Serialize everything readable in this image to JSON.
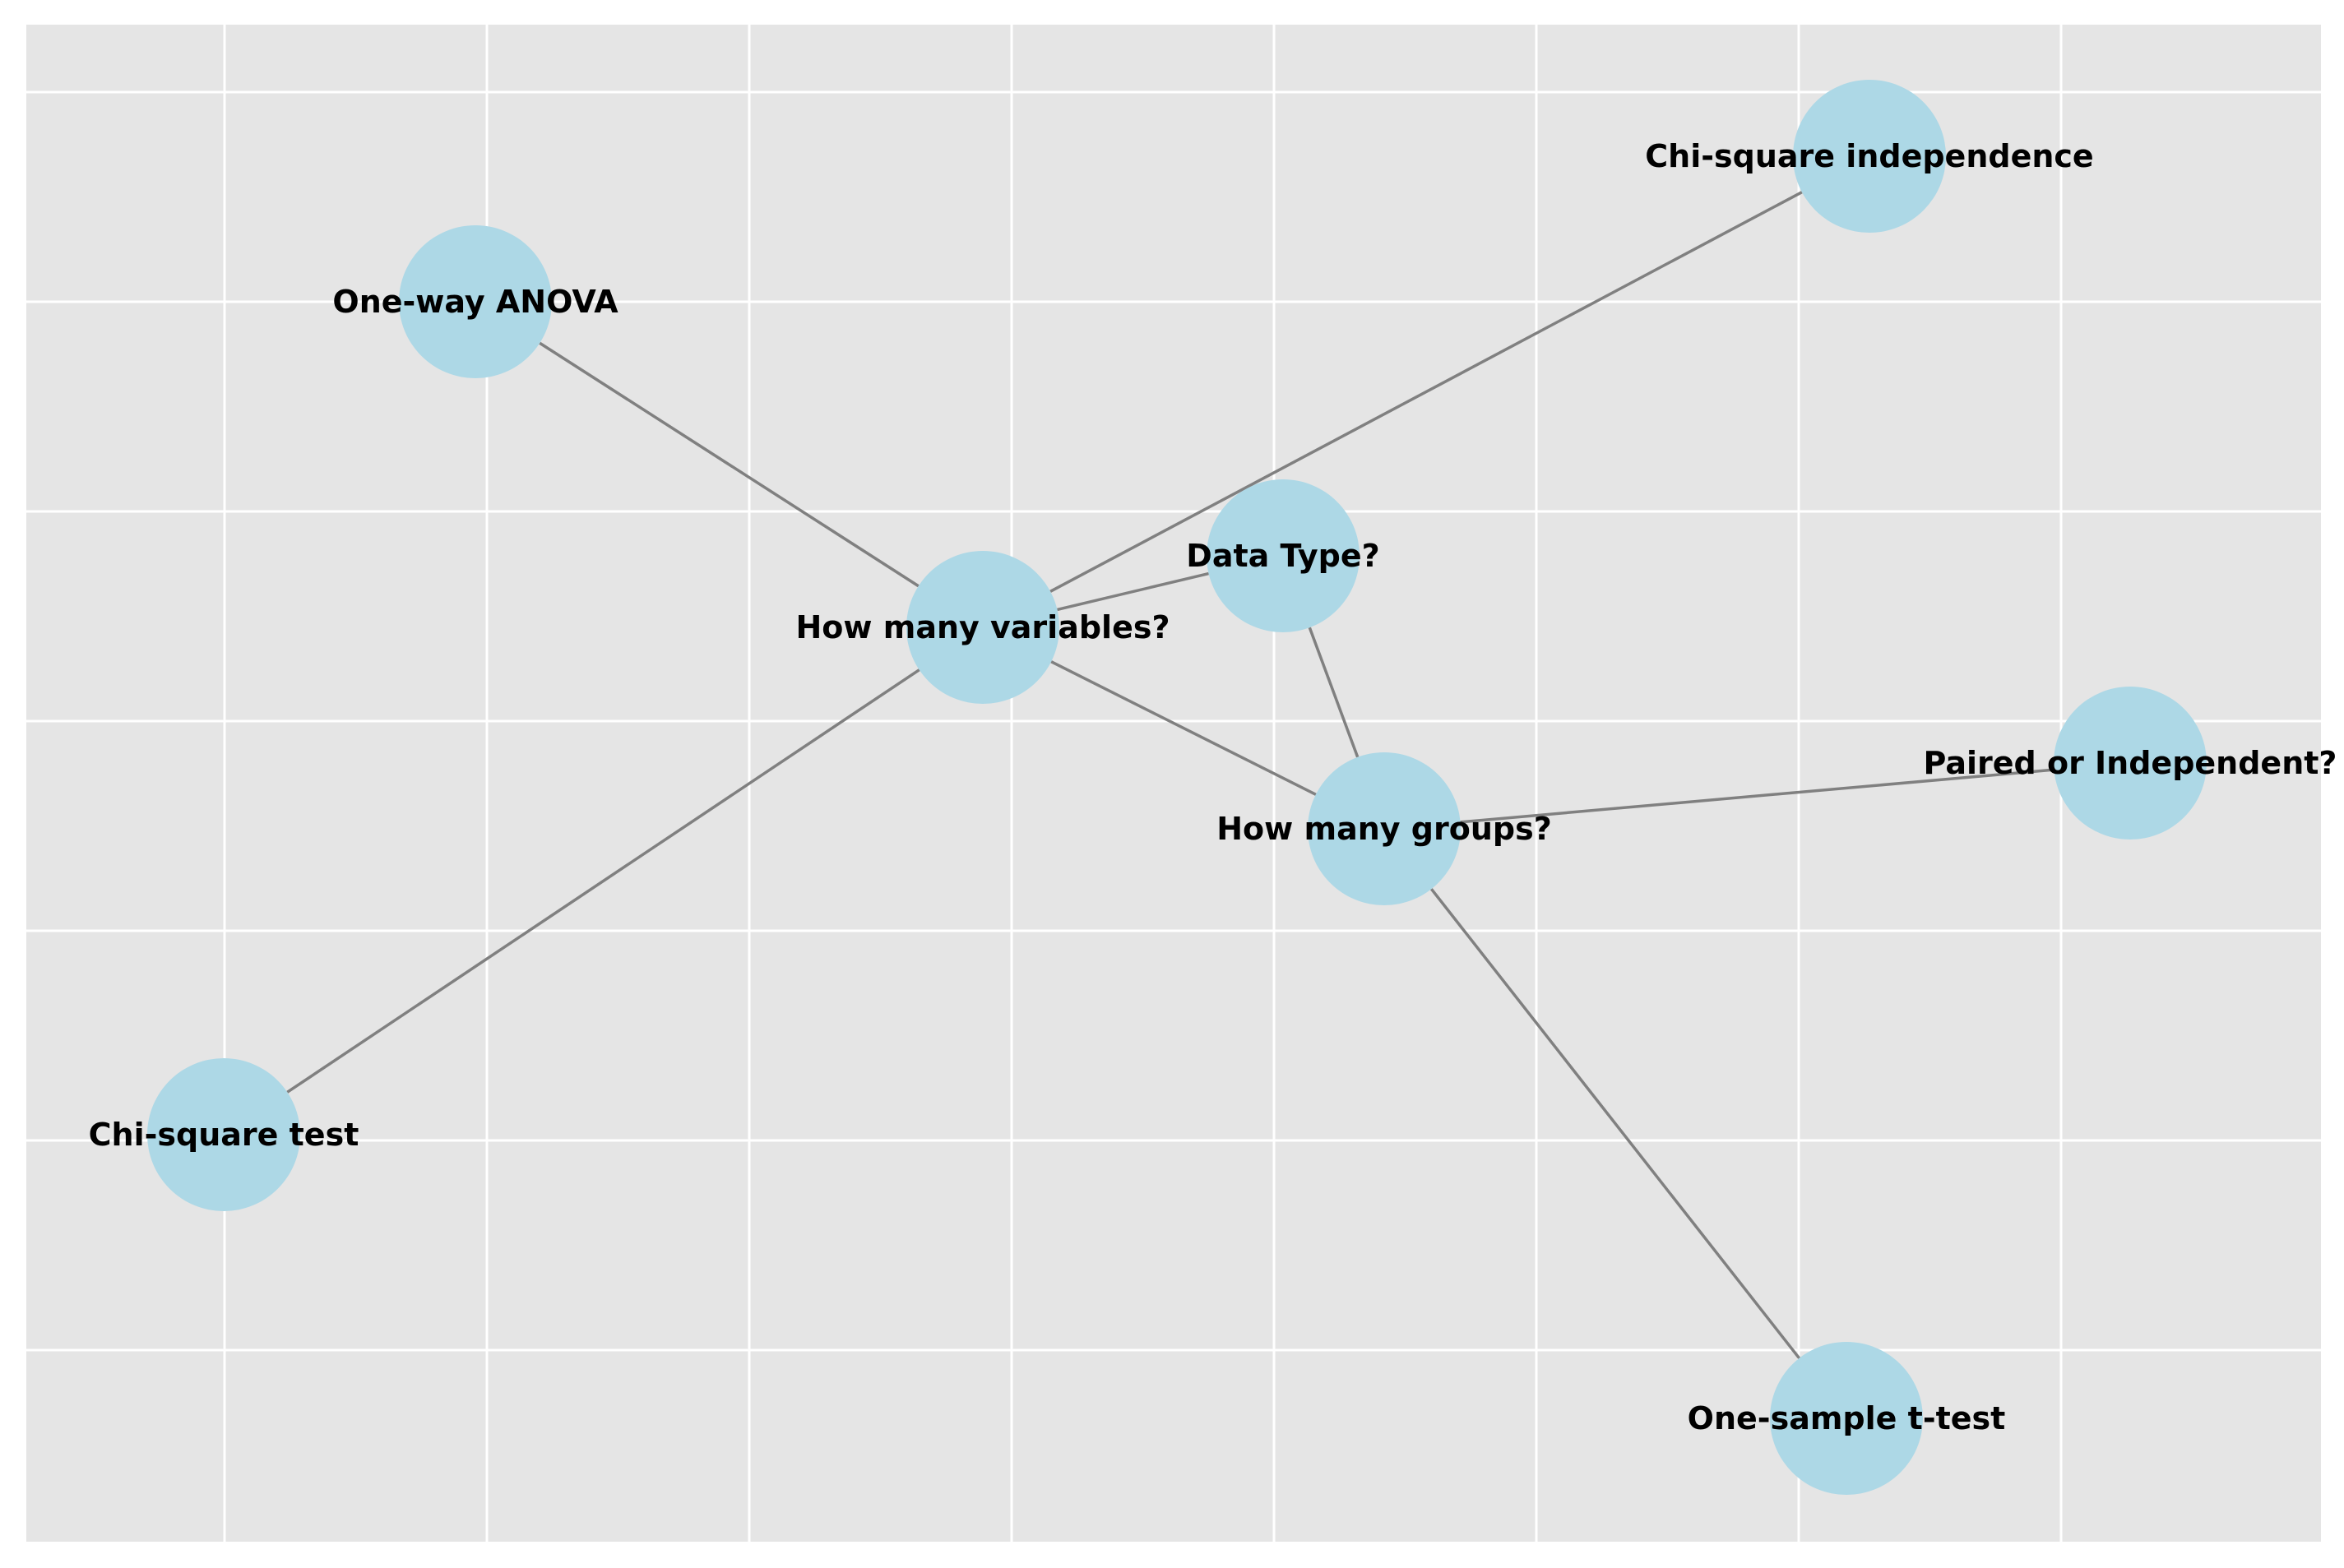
{
  "colors": {
    "plot_background": "#e5e5e5",
    "grid": "#ffffff",
    "edge": "#808080",
    "node_fill": "#add8e6",
    "label": "#000000"
  },
  "nodes": [
    {
      "id": "data-type",
      "label": "Data Type?"
    },
    {
      "id": "how-many-variables",
      "label": "How many variables?"
    },
    {
      "id": "how-many-groups",
      "label": "How many groups?"
    },
    {
      "id": "one-way-anova",
      "label": "One-way ANOVA"
    },
    {
      "id": "chi-square-independence",
      "label": "Chi-square independence"
    },
    {
      "id": "paired-or-independent",
      "label": "Paired or Independent?"
    },
    {
      "id": "chi-square-test",
      "label": "Chi-square test"
    },
    {
      "id": "one-sample-t-test",
      "label": "One-sample t-test"
    }
  ],
  "edges": [
    {
      "from": "data-type",
      "to": "how-many-variables"
    },
    {
      "from": "data-type",
      "to": "how-many-groups"
    },
    {
      "from": "how-many-variables",
      "to": "one-way-anova"
    },
    {
      "from": "how-many-variables",
      "to": "chi-square-independence"
    },
    {
      "from": "how-many-variables",
      "to": "chi-square-test"
    },
    {
      "from": "how-many-variables",
      "to": "how-many-groups"
    },
    {
      "from": "how-many-groups",
      "to": "paired-or-independent"
    },
    {
      "from": "how-many-groups",
      "to": "one-sample-t-test"
    }
  ]
}
